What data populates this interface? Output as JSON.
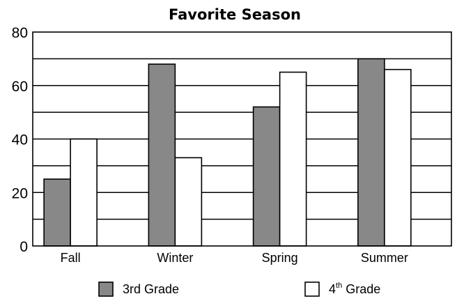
{
  "chart_data": {
    "type": "bar",
    "title": "Favorite Season",
    "xlabel": "",
    "ylabel": "",
    "categories": [
      "Fall",
      "Winter",
      "Spring",
      "Summer"
    ],
    "series": [
      {
        "name": "3rd Grade",
        "values": [
          25,
          68,
          52,
          70
        ],
        "color": "#888888"
      },
      {
        "name": "4th Grade",
        "values": [
          40,
          33,
          65,
          66
        ],
        "color": "#ffffff"
      }
    ],
    "ylim": [
      0,
      80
    ],
    "yticks": [
      "0",
      "20",
      "40",
      "60",
      "80"
    ],
    "ygrid_step": 10,
    "grid": true,
    "legend": {
      "placement": "bottom",
      "items": [
        {
          "text": "3rd Grade",
          "sup": ""
        },
        {
          "text": "4",
          "sup": "th",
          "tail": " Grade"
        }
      ]
    }
  }
}
